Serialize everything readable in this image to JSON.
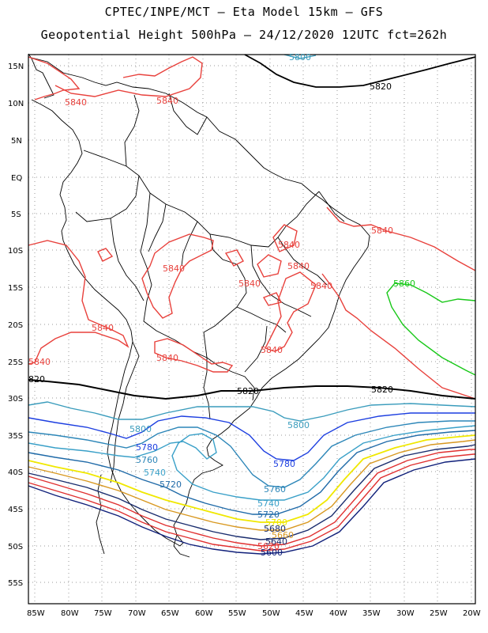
{
  "title_line1": "CPTEC/INPE/MCT –  Eta Model 15km – GFS",
  "title_line2": "Geopotential Height 500hPa – 24/12/2020 12UTC fct=262h",
  "lat_labels": [
    "15N",
    "10N",
    "5N",
    "EQ",
    "5S",
    "10S",
    "15S",
    "20S",
    "25S",
    "30S",
    "35S",
    "40S",
    "45S",
    "50S",
    "55S"
  ],
  "lon_labels": [
    "85W",
    "80W",
    "75W",
    "70W",
    "65W",
    "60W",
    "55W",
    "50W",
    "45W",
    "40W",
    "35W",
    "30W",
    "25W",
    "20W"
  ],
  "colors": {
    "c5840": "#e8413c",
    "c5860": "#18c818",
    "c5820": "#000000",
    "c5800": "#3a9cbc",
    "c5780": "#1c3ee0",
    "c5760": "#2c86b8",
    "c5740": "#3aa0c8",
    "c5720": "#1f6aa8",
    "c5700": "#f0e800",
    "c5680": "#d89820",
    "c5660": "#1a2d6e",
    "c5640": "#e03030",
    "c5620": "#e03030",
    "c5600": "#10207a",
    "coast": "#000000",
    "grid": "#9a9a9a"
  },
  "contour_labels": [
    {
      "text": "5800",
      "color_key": "c5800",
      "icon": "contour-label"
    },
    {
      "text": "5820",
      "color_key": "c5820"
    },
    {
      "text": "5840",
      "color_key": "c5840"
    },
    {
      "text": "5840",
      "color_key": "c5840"
    },
    {
      "text": "5840",
      "color_key": "c5840"
    },
    {
      "text": "5840",
      "color_key": "c5840"
    },
    {
      "text": "5840",
      "color_key": "c5840"
    },
    {
      "text": "5840",
      "color_key": "c5840"
    },
    {
      "text": "5840",
      "color_key": "c5840"
    },
    {
      "text": "5840",
      "color_key": "c5840"
    },
    {
      "text": "5840",
      "color_key": "c5840"
    },
    {
      "text": "5840",
      "color_key": "c5840"
    },
    {
      "text": "5840",
      "color_key": "c5840"
    },
    {
      "text": "5840",
      "color_key": "c5840"
    },
    {
      "text": "5860",
      "color_key": "c5860"
    },
    {
      "text": "5840",
      "color_key": "c5840"
    },
    {
      "text": "5840",
      "color_key": "c5840"
    },
    {
      "text": "5840",
      "color_key": "c5840"
    },
    {
      "text": "820",
      "color_key": "c5820"
    },
    {
      "text": "5820",
      "color_key": "c5820"
    },
    {
      "text": "5820",
      "color_key": "c5820"
    },
    {
      "text": "5800",
      "color_key": "c5800"
    },
    {
      "text": "5800",
      "color_key": "c5800"
    },
    {
      "text": "5780",
      "color_key": "c5780"
    },
    {
      "text": "5780",
      "color_key": "c5780"
    },
    {
      "text": "5760",
      "color_key": "c5760"
    },
    {
      "text": "5760",
      "color_key": "c5760"
    },
    {
      "text": "5740",
      "color_key": "c5740"
    },
    {
      "text": "5740",
      "color_key": "c5740"
    },
    {
      "text": "5720",
      "color_key": "c5720"
    },
    {
      "text": "5720",
      "color_key": "c5720"
    },
    {
      "text": "5700",
      "color_key": "c5700"
    },
    {
      "text": "5680",
      "color_key": "c5660"
    },
    {
      "text": "5660",
      "color_key": "c5680"
    },
    {
      "text": "5640",
      "color_key": "c5660"
    },
    {
      "text": "5620",
      "color_key": "c5620"
    },
    {
      "text": "5600",
      "color_key": "c5600"
    }
  ]
}
